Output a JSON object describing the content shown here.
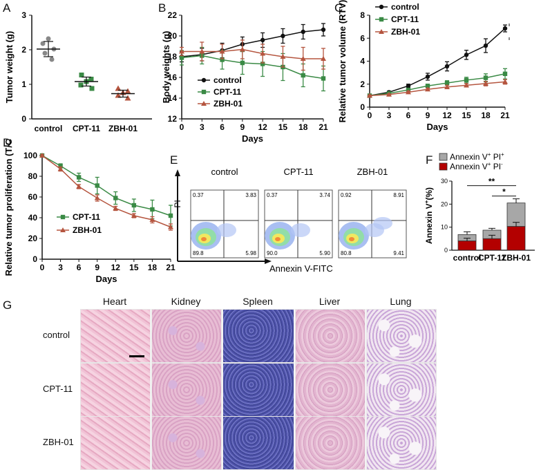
{
  "panel_letters": {
    "A": "A",
    "B": "B",
    "C": "C",
    "D": "D",
    "E": "E",
    "F": "F",
    "G": "G"
  },
  "colors": {
    "control": "#111111",
    "cpt": "#3a8a45",
    "zbh": "#b5553f",
    "gray": "#a7a7a7",
    "gray_dark": "#888888",
    "red": "#b30000"
  },
  "chart_data": [
    {
      "id": "A",
      "type": "scatter",
      "ylabel": "Tumor weight (g)",
      "categories": [
        "control",
        "CPT-11",
        "ZBH-01"
      ],
      "ylim": [
        0,
        3
      ],
      "yticks": [
        0,
        1,
        2,
        3
      ],
      "points": [
        [
          2.32,
          2.18,
          2.02,
          1.9,
          1.72
        ],
        [
          1.27,
          1.15,
          1.08,
          0.98,
          0.88
        ],
        [
          0.88,
          0.8,
          0.76,
          0.68,
          0.6
        ]
      ],
      "means": [
        2.02,
        1.08,
        0.73
      ],
      "sd": [
        0.22,
        0.13,
        0.1
      ]
    },
    {
      "id": "B",
      "type": "line",
      "xlabel": "Days",
      "ylabel": "Body weights (g)",
      "x": [
        0,
        3,
        6,
        9,
        12,
        15,
        18,
        21
      ],
      "ylim": [
        12,
        22
      ],
      "yticks": [
        12,
        14,
        16,
        18,
        20,
        22
      ],
      "series": [
        {
          "name": "control",
          "values": [
            18.0,
            18.2,
            18.6,
            19.2,
            19.6,
            20.0,
            20.4,
            20.6
          ],
          "err": [
            0.5,
            0.6,
            0.7,
            0.7,
            0.7,
            0.7,
            0.7,
            0.6
          ]
        },
        {
          "name": "CPT-11",
          "values": [
            17.9,
            18.1,
            17.7,
            17.4,
            17.3,
            17.0,
            16.2,
            15.9
          ],
          "err": [
            0.7,
            0.8,
            0.9,
            1.1,
            1.2,
            1.3,
            1.1,
            1.2
          ]
        },
        {
          "name": "ZBH-01",
          "values": [
            18.5,
            18.5,
            18.5,
            18.7,
            18.3,
            18.0,
            17.8,
            17.8
          ],
          "err": [
            0.4,
            0.9,
            0.7,
            0.9,
            0.9,
            1.0,
            1.1,
            1.0
          ]
        }
      ]
    },
    {
      "id": "C",
      "type": "line",
      "xlabel": "Days",
      "ylabel": "Relative tumor volume (RTV)",
      "x": [
        0,
        3,
        6,
        9,
        12,
        15,
        18,
        21
      ],
      "ylim": [
        0,
        8
      ],
      "yticks": [
        0,
        2,
        4,
        6,
        8
      ],
      "series": [
        {
          "name": "control",
          "values": [
            1.0,
            1.3,
            1.85,
            2.65,
            3.55,
            4.55,
            5.35,
            6.85
          ],
          "err": [
            0.05,
            0.1,
            0.15,
            0.3,
            0.4,
            0.4,
            0.6,
            0.3
          ]
        },
        {
          "name": "CPT-11",
          "values": [
            1.0,
            1.2,
            1.5,
            1.85,
            2.1,
            2.35,
            2.55,
            2.9
          ],
          "err": [
            0.05,
            0.1,
            0.1,
            0.15,
            0.2,
            0.25,
            0.35,
            0.45
          ]
        },
        {
          "name": "ZBH-01",
          "values": [
            1.0,
            1.1,
            1.3,
            1.55,
            1.75,
            1.9,
            2.05,
            2.2
          ],
          "err": [
            0.05,
            0.05,
            0.1,
            0.1,
            0.15,
            0.15,
            0.2,
            0.2
          ]
        }
      ]
    },
    {
      "id": "D",
      "type": "line",
      "xlabel": "Days",
      "ylabel": "Relative tumor proliferation (T/C",
      "x": [
        0,
        3,
        6,
        9,
        12,
        15,
        18,
        21
      ],
      "ylim": [
        0,
        100
      ],
      "yticks": [
        0,
        20,
        40,
        60,
        80,
        100
      ],
      "series": [
        {
          "name": "CPT-11",
          "values": [
            100,
            90,
            79,
            71,
            59,
            52,
            48,
            42
          ],
          "err": [
            1,
            2,
            4,
            8,
            6,
            6,
            9,
            10
          ]
        },
        {
          "name": "ZBH-01",
          "values": [
            100,
            87,
            70,
            59,
            49,
            42,
            38,
            31
          ],
          "err": [
            1,
            2,
            2,
            3,
            2,
            2,
            3,
            3
          ]
        }
      ]
    },
    {
      "id": "E",
      "type": "scatter",
      "xlabel": "Annexin V-FITC",
      "ylabel": "PI",
      "plots": [
        {
          "title": "control",
          "q_ul": "0.37",
          "q_ur": "3.83",
          "q_ll": "89.8",
          "q_lr": "5.98"
        },
        {
          "title": "CPT-11",
          "q_ul": "0.37",
          "q_ur": "3.74",
          "q_ll": "90.0",
          "q_lr": "5.90"
        },
        {
          "title": "ZBH-01",
          "q_ul": "0.92",
          "q_ur": "8.91",
          "q_ll": "80.8",
          "q_lr": "9.41"
        }
      ]
    },
    {
      "id": "F",
      "type": "bar",
      "ylabel": "Annexin V+(%)",
      "categories": [
        "control",
        "CPT-11",
        "ZBH-01"
      ],
      "ylim": [
        0,
        30
      ],
      "yticks": [
        0,
        10,
        20,
        30
      ],
      "series": [
        {
          "name": "Annexin V+ PI-",
          "values": [
            4.0,
            5.0,
            10.3
          ],
          "err": [
            1.2,
            1.5,
            1.8
          ]
        },
        {
          "name": "Annexin V+ PI+",
          "values": [
            2.8,
            3.7,
            10.2
          ],
          "err": [
            1.2,
            0.8,
            1.8
          ]
        }
      ],
      "legend": [
        {
          "base": "Annexin V",
          "sup1": "+",
          "mid": " PI",
          "sup2": "+"
        },
        {
          "base": "Annexin V",
          "sup1": "+",
          "mid": " PI",
          "sup2": "-"
        }
      ],
      "sig": [
        {
          "label": "**",
          "from": "control",
          "to": "ZBH-01"
        },
        {
          "label": "*",
          "from": "CPT-11",
          "to": "ZBH-01"
        }
      ]
    }
  ],
  "histology": {
    "columns": [
      "Heart",
      "Kidney",
      "Spleen",
      "Liver",
      "Lung"
    ],
    "rows": [
      "control",
      "CPT-11",
      "ZBH-01"
    ]
  }
}
